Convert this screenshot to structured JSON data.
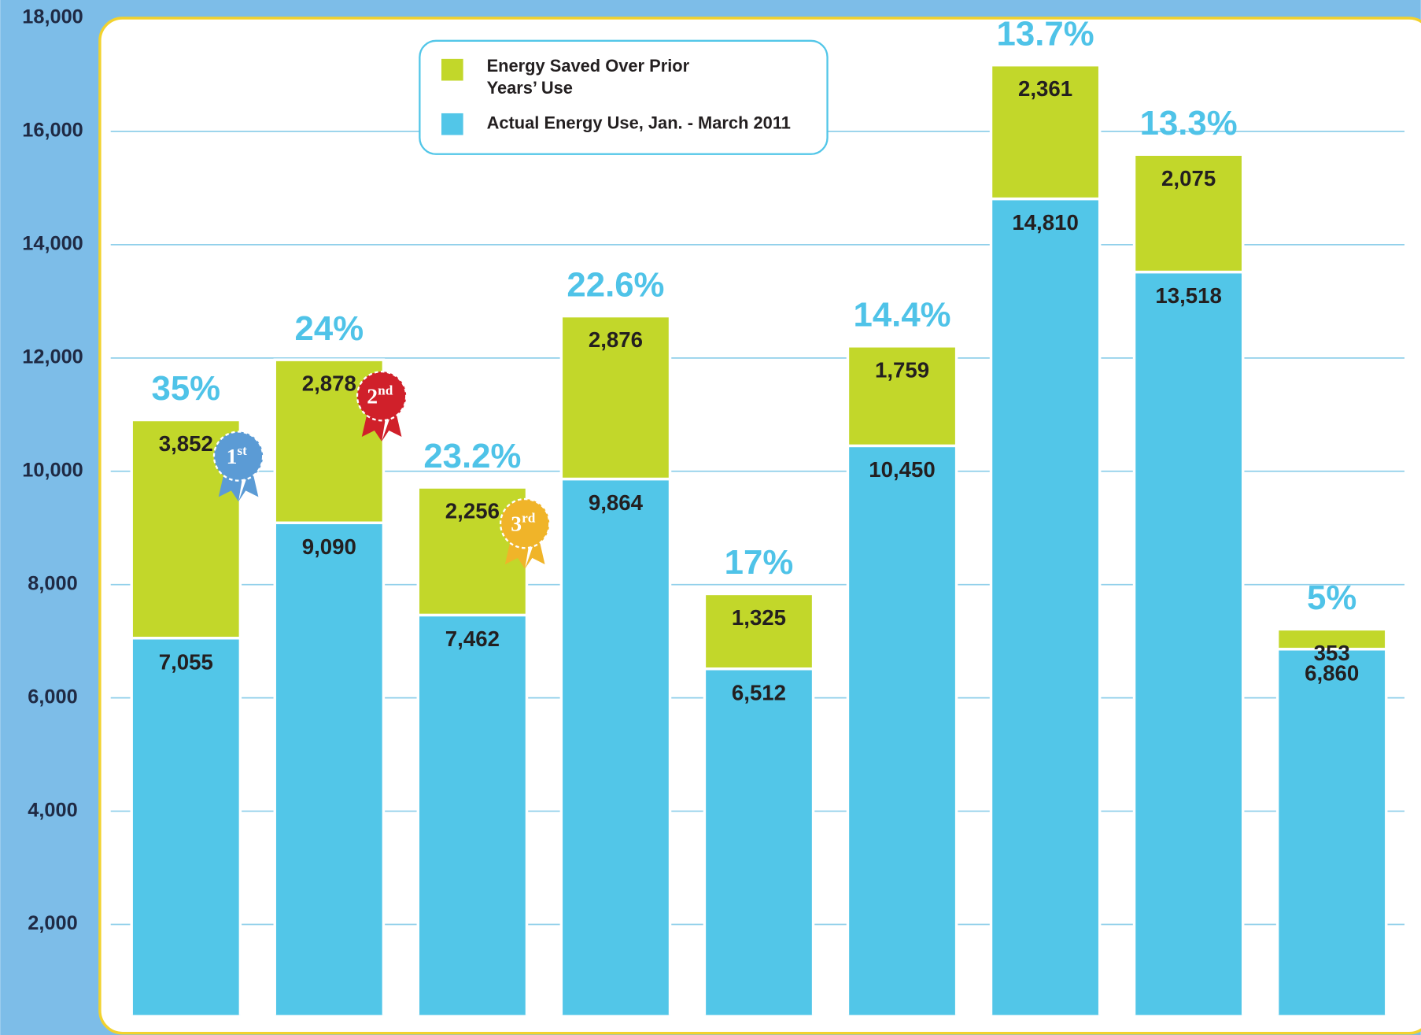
{
  "chart_data": {
    "type": "stacked_bar",
    "categories": [
      null,
      null,
      null,
      null,
      null,
      null,
      null,
      null,
      null
    ],
    "series": [
      {
        "name": "Actual Energy Use, Jan. - March 2011",
        "color": "#52c6e8",
        "values": [
          7055,
          9090,
          7462,
          9864,
          6512,
          10450,
          14810,
          13518,
          6860
        ],
        "value_labels": [
          "7,055",
          "9,090",
          "7,462",
          "9,864",
          "6,512",
          "10,450",
          "14,810",
          "13,518",
          "6,860"
        ]
      },
      {
        "name": "Energy Saved Over Prior Years’ Use",
        "color": "#c2d72a",
        "values": [
          3852,
          2878,
          2256,
          2876,
          1325,
          1759,
          2361,
          2075,
          353
        ],
        "value_labels": [
          "3,852",
          "2,878",
          "2,256",
          "2,876",
          "1,325",
          "1,759",
          "2,361",
          "2,075",
          "353"
        ]
      }
    ],
    "annotations": [
      "35%",
      "24%",
      "23.2%",
      "22.6%",
      "17%",
      "14.4%",
      "13.7%",
      "13.3%",
      "5%"
    ],
    "ribbons": [
      {
        "rank": "1",
        "suffix": "st",
        "color": "#5b9bd5"
      },
      {
        "rank": "2",
        "suffix": "nd",
        "color": "#d0202a"
      },
      {
        "rank": "3",
        "suffix": "rd",
        "color": "#f0b429"
      }
    ],
    "ylim": [
      0,
      18000
    ],
    "yticks": [
      {
        "value": 2000,
        "label": "2,000"
      },
      {
        "value": 4000,
        "label": "4,000"
      },
      {
        "value": 6000,
        "label": "6,000"
      },
      {
        "value": 8000,
        "label": "8,000"
      },
      {
        "value": 10000,
        "label": "10,000"
      },
      {
        "value": 12000,
        "label": "12,000"
      },
      {
        "value": 14000,
        "label": "14,000"
      },
      {
        "value": 16000,
        "label": "16,000"
      },
      {
        "value": 18000,
        "label": "18,000"
      }
    ],
    "grid": true,
    "legend": "top"
  }
}
